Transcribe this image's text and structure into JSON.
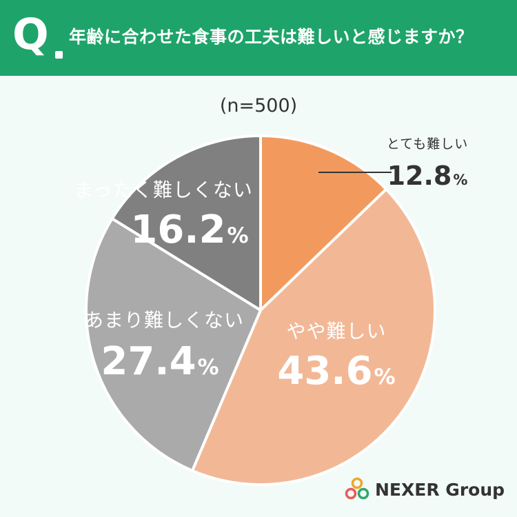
{
  "header": {
    "q_letter": "Q",
    "question": "年齢に合わせた食事の工夫は難しいと感じますか？",
    "bg_color": "#1ea46a"
  },
  "sample_size": "(n=500)",
  "brand": {
    "name": "NEXER Group"
  },
  "chart_data": {
    "type": "pie",
    "title": "年齢に合わせた食事の工夫は難しいと感じますか？",
    "subtitle": "(n=500)",
    "unit": "%",
    "slices": [
      {
        "label": "とても難しい",
        "value": 12.8,
        "color": "#f29a5e"
      },
      {
        "label": "やや難しい",
        "value": 43.6,
        "color": "#f2b896"
      },
      {
        "label": "あまり難しくない",
        "value": 27.4,
        "color": "#aaaaaa"
      },
      {
        "label": "まったく難しくない",
        "value": 16.2,
        "color": "#808080"
      }
    ]
  }
}
